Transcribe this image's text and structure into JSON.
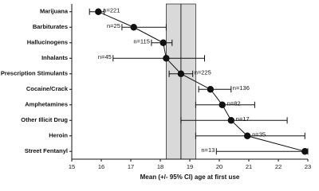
{
  "chart_data": {
    "type": "dot-ci",
    "x_label": "Mean (+/- 95% CI) age at first use",
    "categories": [
      "Marijuana",
      "Barbiturates",
      "Hallucinogens",
      "Inhalants",
      "Prescription Stimulants",
      "Cocaine/Crack",
      "Amphetamines",
      "Other Illicit Drug",
      "Heroin",
      "Street Fentanyl"
    ],
    "values": [
      15.9,
      17.1,
      18.1,
      18.2,
      18.7,
      19.7,
      20.1,
      20.4,
      20.95,
      22.9
    ],
    "ci_low": [
      15.6,
      16.7,
      17.7,
      16.4,
      18.3,
      19.3,
      19.2,
      18.7,
      19.2,
      19.9
    ],
    "ci_high": [
      16.1,
      18.2,
      18.4,
      19.5,
      19.1,
      20.4,
      21.2,
      22.3,
      22.9,
      23.0
    ],
    "n_labels": [
      "n=221",
      "n=25",
      "n=115",
      "n=45",
      "n=225",
      "n=136",
      "n=82",
      "n=17",
      "n=35",
      "n=13"
    ],
    "reference_line": 18.7,
    "reference_band": [
      18.2,
      19.2
    ],
    "color": "#111111",
    "band_color": "#d9d9d9",
    "xlim": [
      15,
      23
    ],
    "xticks": [
      15,
      16,
      17,
      18,
      19,
      20,
      21,
      22,
      23
    ]
  }
}
